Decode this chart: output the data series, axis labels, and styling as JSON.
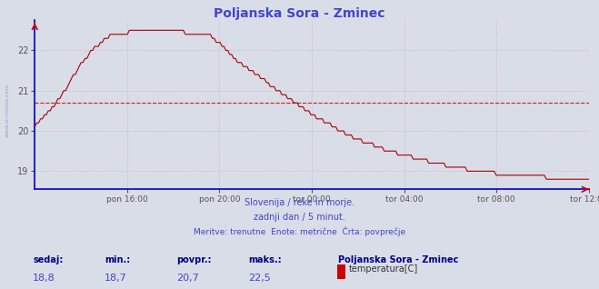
{
  "title": "Poljanska Sora - Zminec",
  "title_color": "#4444cc",
  "bg_color": "#d8dde8",
  "plot_bg_color": "#d8dde8",
  "line_color": "#aa0000",
  "line_width": 0.9,
  "avg_line_color": "#cc0000",
  "avg_line_value": 20.7,
  "ylim": [
    18.55,
    22.75
  ],
  "yticks": [
    19,
    20,
    21,
    22
  ],
  "xlabel_ticks": [
    "pon 16:00",
    "pon 20:00",
    "tor 00:00",
    "tor 04:00",
    "tor 08:00",
    "tor 12:00"
  ],
  "grid_color": "#cc6666",
  "grid_alpha": 0.45,
  "footer_line1": "Slovenija / reke in morje.",
  "footer_line2": "zadnji dan / 5 minut.",
  "footer_line3": "Meritve: trenutne  Enote: metrične  Črta: povprečje",
  "footer_color": "#4444cc",
  "stats_labels": [
    "sedaj:",
    "min.:",
    "povpr.:",
    "maks.:"
  ],
  "stats_values": [
    "18,8",
    "18,7",
    "20,7",
    "22,5"
  ],
  "legend_label": "Poljanska Sora - Zminec",
  "legend_sublabel": "temperatura[C]",
  "legend_color": "#cc0000",
  "sidebar_text": "www.si-vreme.com",
  "blue_spine_color": "#0000cc",
  "n_points": 288
}
